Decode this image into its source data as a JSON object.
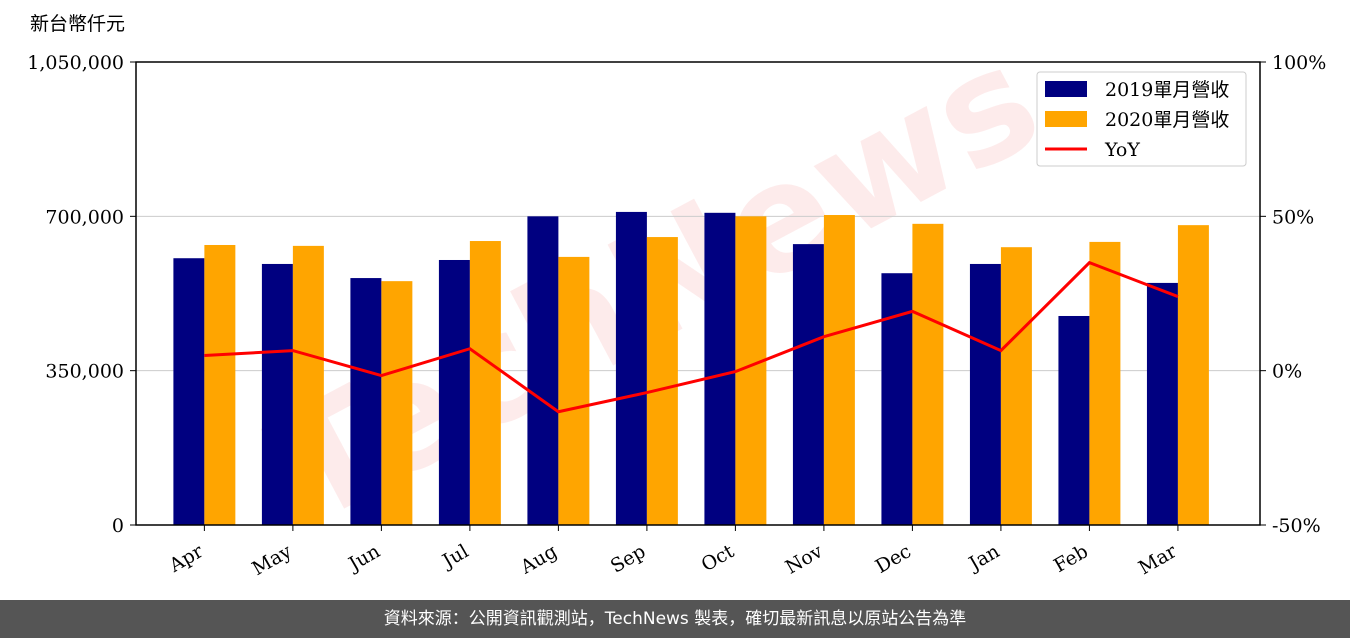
{
  "chart_data": {
    "type": "bar-line",
    "y_label": "新台幣仟元",
    "watermark": "TechNews",
    "categories": [
      "Apr",
      "May",
      "Jun",
      "Jul",
      "Aug",
      "Sep",
      "Oct",
      "Nov",
      "Dec",
      "Jan",
      "Feb",
      "Mar"
    ],
    "series": [
      {
        "name": "2019單月營收",
        "color": "#000080",
        "values": [
          605000,
          592000,
          560000,
          601000,
          700000,
          710000,
          708000,
          637000,
          571000,
          592000,
          474000,
          549000
        ]
      },
      {
        "name": "2020單月營收",
        "color": "#ffa500",
        "values": [
          635000,
          633000,
          553000,
          644000,
          608000,
          653000,
          700000,
          703000,
          683000,
          630000,
          642000,
          680000
        ]
      },
      {
        "name": "YoY",
        "color": "#ff0000",
        "axis": "y2",
        "values": [
          4.9,
          6.5,
          -1.6,
          7.1,
          -13.3,
          -7.1,
          -0.3,
          11,
          19.2,
          6.5,
          35,
          24
        ]
      }
    ],
    "ylim": [
      0,
      1050000
    ],
    "yticks": [
      0,
      {
        "value": 350000,
        "label": "350,000"
      },
      {
        "value": 700000,
        "label": "700,000"
      },
      {
        "value": 1050000,
        "label": "1,050,000"
      }
    ],
    "y2lim": [
      -50,
      100
    ],
    "y2ticks": [
      {
        "value": -50,
        "label": "-50%"
      },
      {
        "value": 0,
        "label": "0%"
      },
      {
        "value": 50,
        "label": "50%"
      },
      {
        "value": 100,
        "label": "100%"
      }
    ],
    "grid": true,
    "legend": "upper right"
  },
  "footer": "資料來源：公開資訊觀測站，TechNews 製表，確切最新訊息以原站公告為準"
}
